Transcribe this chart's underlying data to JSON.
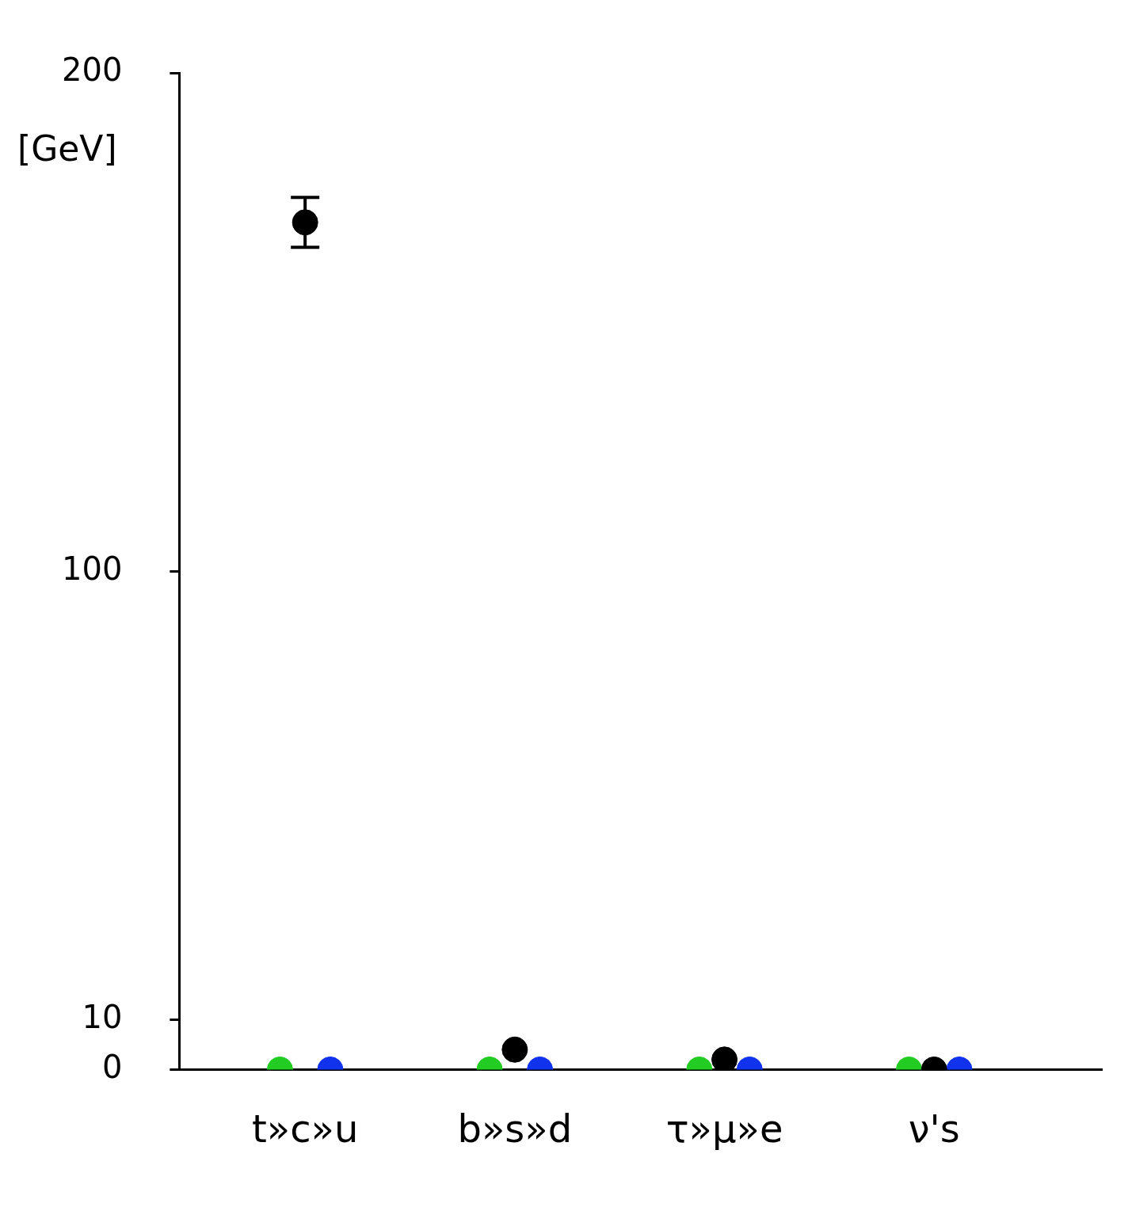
{
  "chart_data": {
    "type": "scatter",
    "ylabel": "[GeV]",
    "categories": [
      "t»c»u",
      "b»s»d",
      "τ»μ»e",
      "ν's"
    ],
    "series": [
      {
        "color": "#22cc22",
        "values": [
          0,
          0,
          0,
          0
        ]
      },
      {
        "color": "#000000",
        "values": [
          170,
          4,
          2,
          0
        ],
        "errors": [
          5,
          null,
          null,
          null
        ]
      },
      {
        "color": "#1133ee",
        "values": [
          0,
          0,
          0,
          0
        ]
      }
    ],
    "ylim": [
      0,
      200
    ],
    "yticks": [
      0,
      10,
      100,
      200
    ],
    "grid": false,
    "legend": false,
    "marker": "circle"
  }
}
